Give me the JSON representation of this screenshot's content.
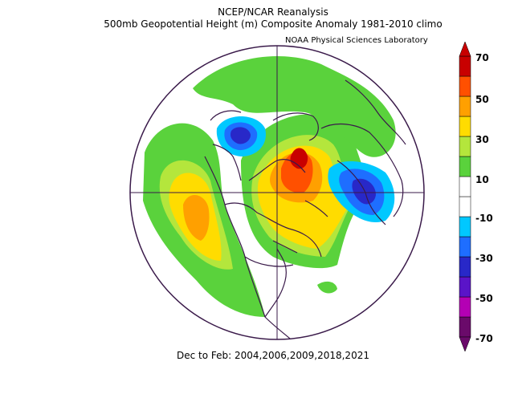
{
  "header": {
    "title": "NCEP/NCAR Reanalysis",
    "subtitle": "500mb Geopotential Height (m) Composite Anomaly 1981-2010 climo",
    "lab": "NOAA Physical Sciences Laboratory"
  },
  "footer": {
    "period": "Dec to Feb: 2004,2006,2009,2018,2021"
  },
  "colorbar": {
    "ticks": [
      "70",
      "50",
      "30",
      "10",
      "-10",
      "-30",
      "-50",
      "-70"
    ],
    "colors": [
      "#6a0a6a",
      "#b400b4",
      "#5a14c8",
      "#2828c8",
      "#1e6eff",
      "#00c8ff",
      "#ffffff",
      "#ffffff",
      "#5ad23c",
      "#b4e63c",
      "#ffdc00",
      "#ffa000",
      "#ff5000",
      "#c80000"
    ]
  },
  "map_data": {
    "projection": "north-polar-stereographic",
    "features": [
      {
        "name": "positive-anomaly-north-atlantic",
        "sign": "positive",
        "peak": 60
      },
      {
        "name": "positive-anomaly-eastern-pacific",
        "sign": "positive",
        "peak": 45
      },
      {
        "name": "negative-anomaly-eurasia",
        "sign": "negative",
        "peak": -35
      },
      {
        "name": "negative-anomaly-arctic-siberia",
        "sign": "negative",
        "peak": -30
      }
    ]
  }
}
